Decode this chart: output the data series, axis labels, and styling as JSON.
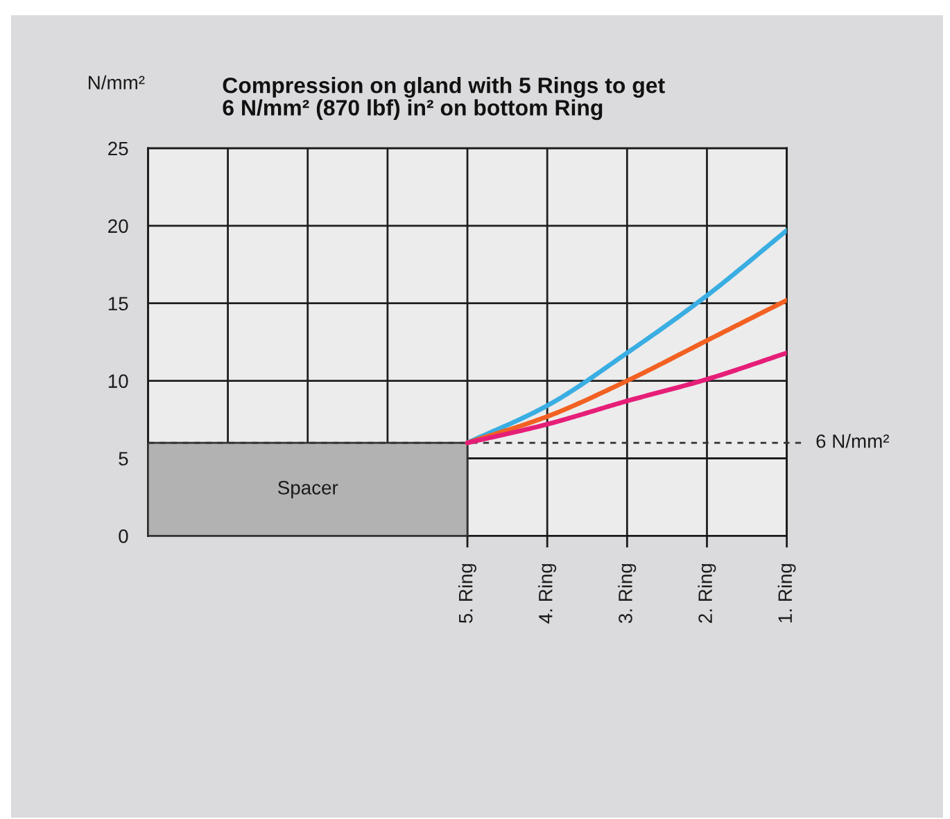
{
  "chart_data": {
    "type": "line",
    "title": "Compression on gland with 5 Rings to get\n6 N/mm² (870 lbf) in² on bottom Ring",
    "ylabel": "N/mm²",
    "categories": [
      null,
      null,
      null,
      null,
      "5. Ring",
      "4. Ring",
      "3. Ring",
      "2. Ring",
      "1. Ring"
    ],
    "series": [
      {
        "name": "Spacer",
        "type": "area",
        "color": "#b2b2b2",
        "values": [
          6,
          6,
          6,
          6,
          6,
          null,
          null,
          null,
          null
        ]
      },
      {
        "color": "#3aaee2",
        "values": [
          null,
          null,
          null,
          null,
          6,
          8.4,
          11.8,
          15.5,
          19.7
        ]
      },
      {
        "color": "#f26122",
        "values": [
          null,
          null,
          null,
          null,
          6,
          7.7,
          10.0,
          12.6,
          15.2
        ]
      },
      {
        "color": "#e61e78",
        "values": [
          null,
          null,
          null,
          null,
          6,
          7.2,
          8.7,
          10.1,
          11.8
        ]
      }
    ],
    "ylim": [
      0,
      25
    ],
    "yticks": [
      0,
      5,
      10,
      15,
      20,
      25
    ],
    "grid": true,
    "ref_lines": [
      {
        "axis": "y",
        "value": 6,
        "label": "6 N/mm²",
        "color": "#333333",
        "line_style": "dashed"
      }
    ]
  }
}
